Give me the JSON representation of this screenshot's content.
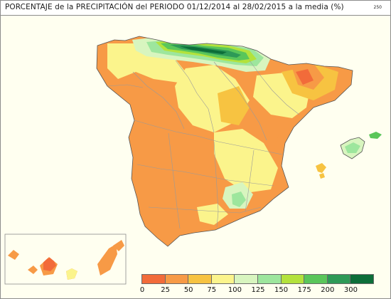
{
  "title": "PORCENTAJE de la PRECIPITACIÓN del PERIODO 01/12/2014 al 28/02/2015 a la media (%)",
  "map_code": "250",
  "legend": {
    "colors": [
      "#f26b3a",
      "#f79a46",
      "#f7c341",
      "#fbf48c",
      "#d8f5bf",
      "#9de69d",
      "#b3e23c",
      "#5ac65a",
      "#2e9a57",
      "#0d6e39"
    ],
    "ticks": [
      "0",
      "25",
      "50",
      "75",
      "100",
      "125",
      "150",
      "175",
      "200",
      "300"
    ]
  },
  "palette": {
    "land_base": "#f79a46",
    "sea": "#ffffff",
    "boundary": "#9a9a9a",
    "coast": "#555555"
  }
}
